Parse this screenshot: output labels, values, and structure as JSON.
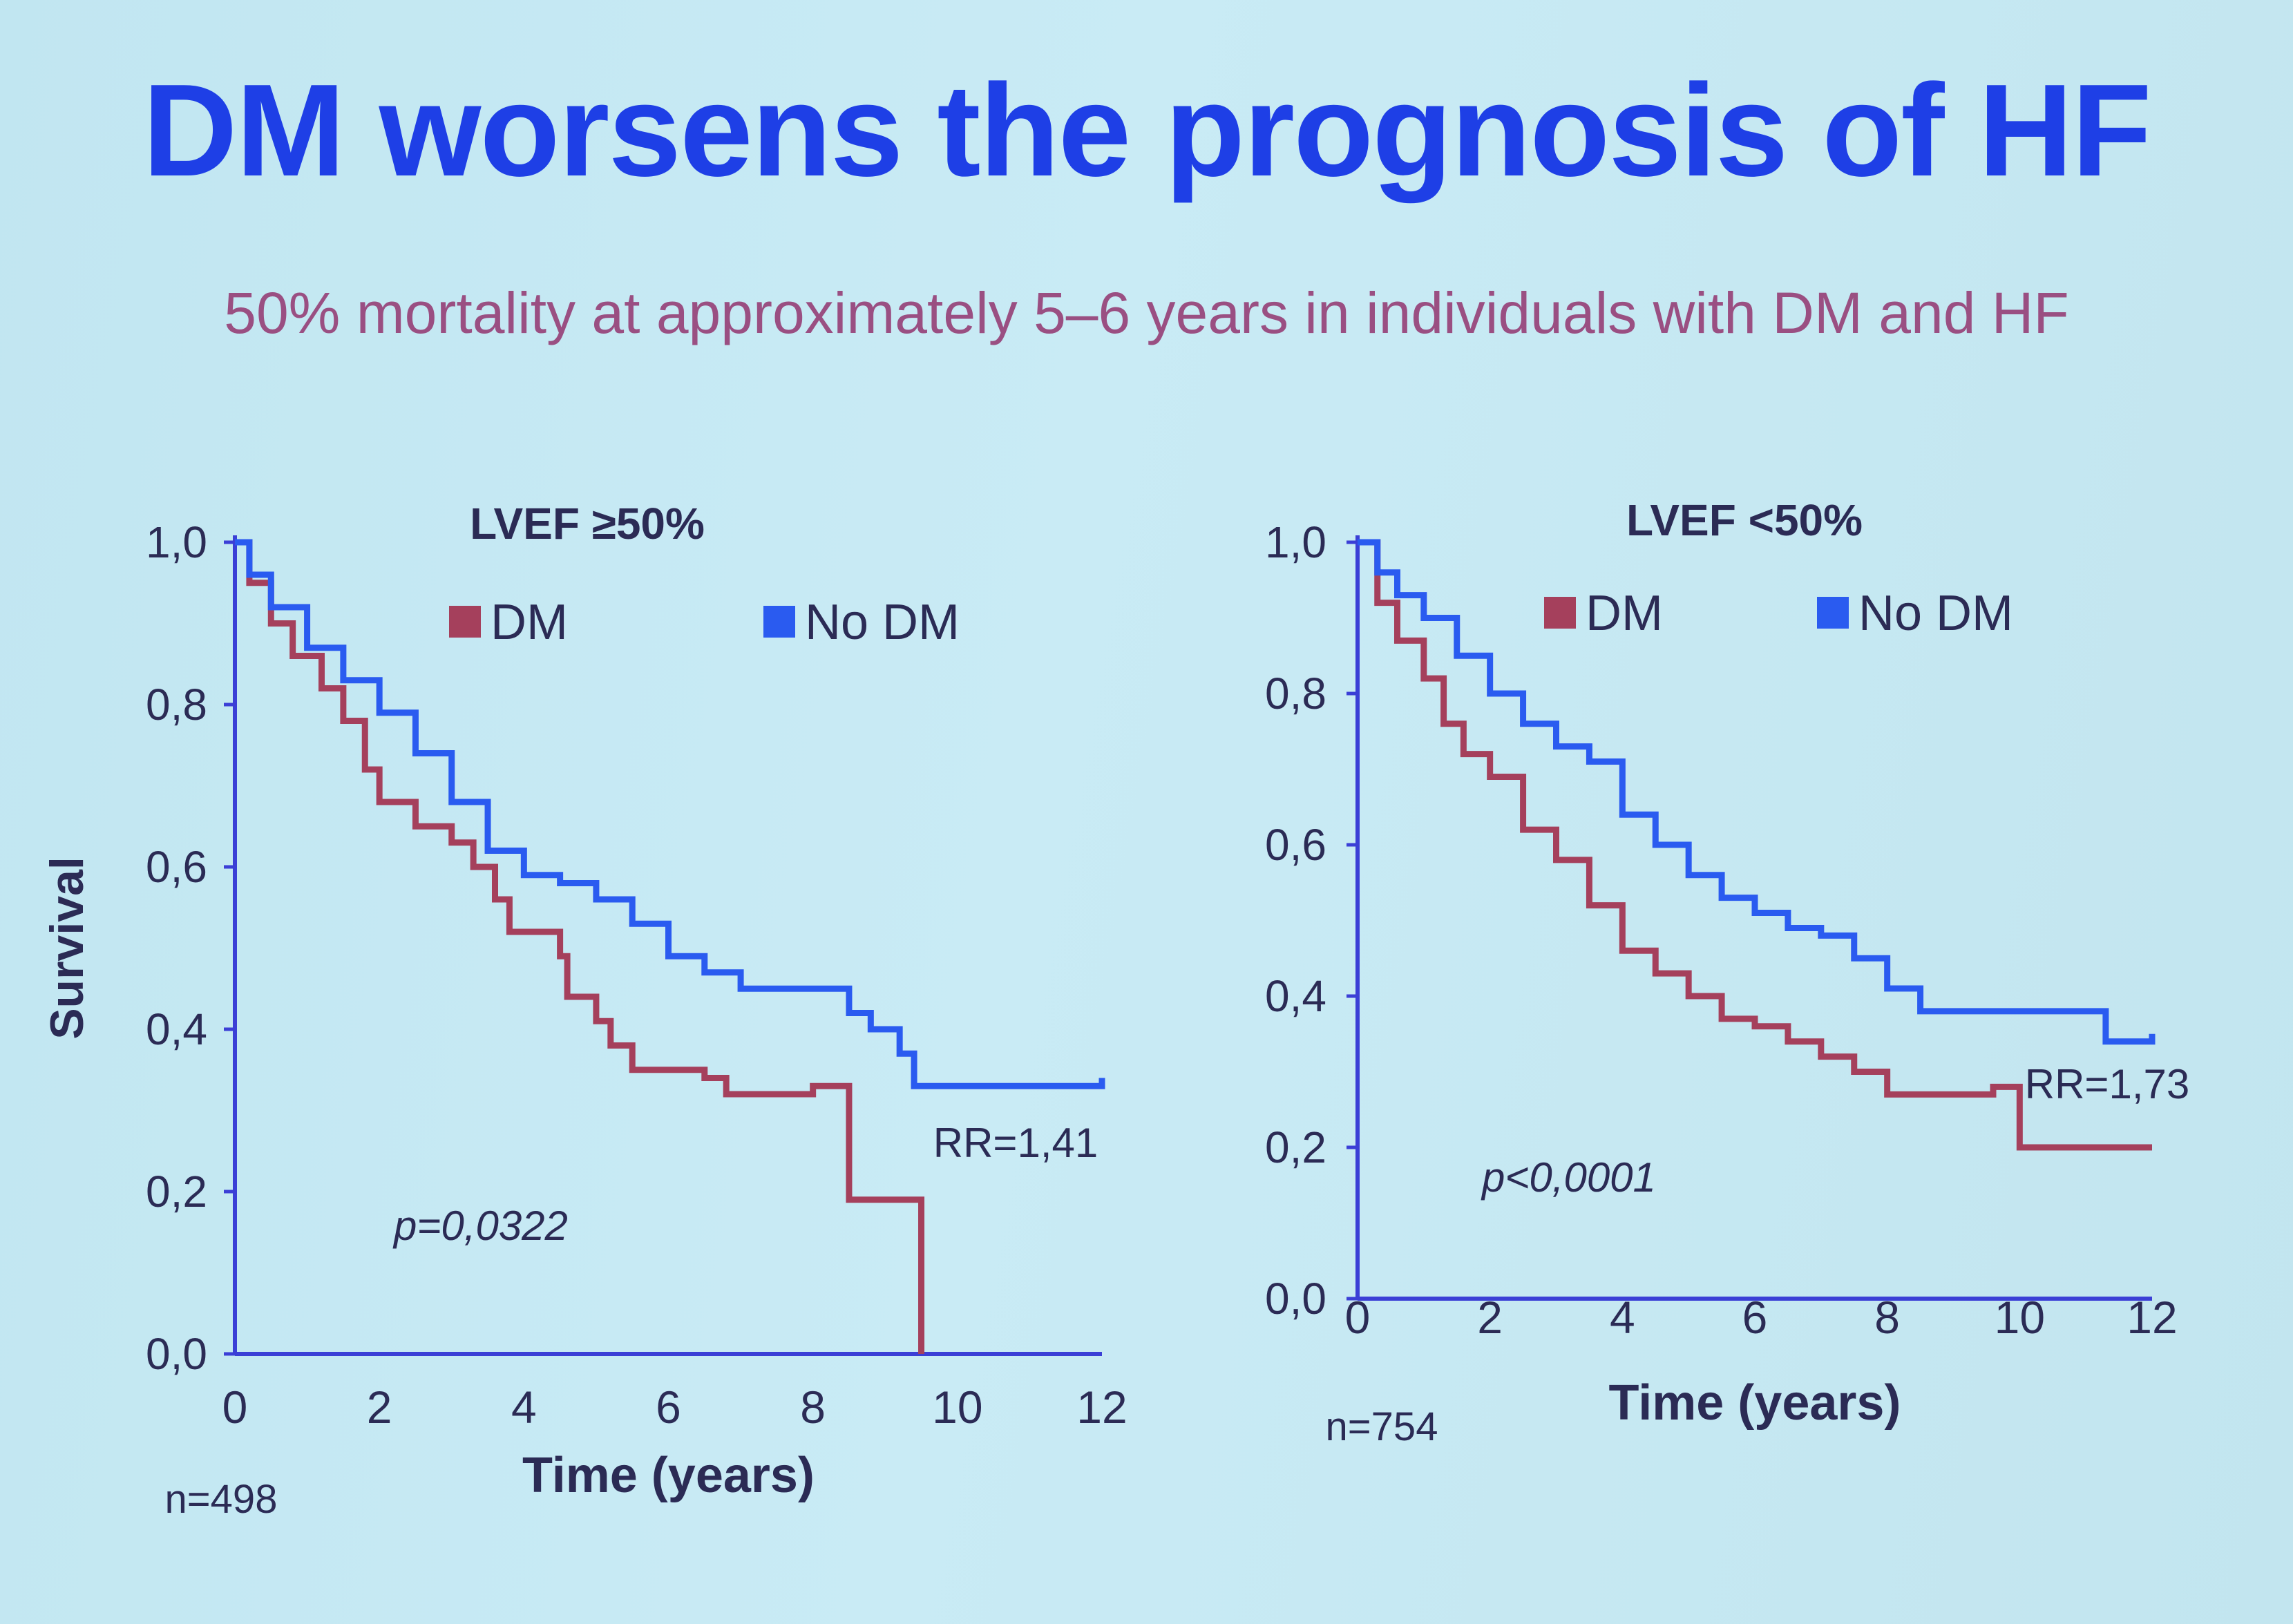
{
  "slide": {
    "title": "DM worsens the prognosis of HF",
    "subtitle": "50% mortality at approximately 5–6 years in individuals with DM and HF"
  },
  "colors": {
    "title": "#1e3fe6",
    "subtitle": "#9a4f82",
    "dm": "#a5405c",
    "no_dm": "#2a5bf0",
    "axis": "#3b3fd6",
    "text": "#2b2b55",
    "background": "#c6e9f3"
  },
  "chart_data": [
    {
      "type": "line",
      "subtype": "kaplan-meier",
      "title": "LVEF ≥50%",
      "xlabel": "Time (years)",
      "ylabel": "Survival",
      "xlim": [
        0,
        12
      ],
      "ylim": [
        0,
        1
      ],
      "x_ticks": [
        "0",
        "2",
        "4",
        "6",
        "8",
        "10",
        "12"
      ],
      "y_ticks": [
        "0,0",
        "0,2",
        "0,4",
        "0,6",
        "0,8",
        "1,0"
      ],
      "legend": [
        "DM",
        "No DM"
      ],
      "annotations": {
        "p_value": "p=0,0322",
        "rr": "RR=1,41",
        "n": "n=498"
      },
      "series": [
        {
          "name": "DM",
          "color": "#a5405c",
          "x": [
            0,
            0.2,
            0.5,
            0.8,
            1.2,
            1.5,
            1.8,
            2.0,
            2.5,
            3.0,
            3.3,
            3.6,
            3.8,
            4.5,
            4.6,
            5.0,
            5.2,
            5.5,
            6.5,
            6.8,
            7.5,
            8.0,
            8.5,
            9.3,
            9.5
          ],
          "y": [
            1.0,
            0.95,
            0.9,
            0.86,
            0.82,
            0.78,
            0.72,
            0.68,
            0.65,
            0.63,
            0.6,
            0.56,
            0.52,
            0.49,
            0.44,
            0.41,
            0.38,
            0.35,
            0.34,
            0.32,
            0.32,
            0.33,
            0.19,
            0.19,
            0.0
          ]
        },
        {
          "name": "No DM",
          "color": "#2a5bf0",
          "x": [
            0,
            0.2,
            0.5,
            1.0,
            1.5,
            2.0,
            2.5,
            3.0,
            3.5,
            4.0,
            4.5,
            5.0,
            5.5,
            6.0,
            6.5,
            7.0,
            7.5,
            8.0,
            8.5,
            8.8,
            9.2,
            9.4,
            10.0,
            11.0,
            12.0
          ],
          "y": [
            1.0,
            0.96,
            0.92,
            0.87,
            0.83,
            0.79,
            0.74,
            0.68,
            0.62,
            0.59,
            0.58,
            0.56,
            0.53,
            0.49,
            0.47,
            0.45,
            0.45,
            0.45,
            0.42,
            0.4,
            0.37,
            0.33,
            0.33,
            0.33,
            0.34
          ]
        }
      ]
    },
    {
      "type": "line",
      "subtype": "kaplan-meier",
      "title": "LVEF <50%",
      "xlabel": "Time (years)",
      "ylabel": "",
      "xlim": [
        0,
        12
      ],
      "ylim": [
        0,
        1
      ],
      "x_ticks": [
        "0",
        "2",
        "4",
        "6",
        "8",
        "10",
        "12"
      ],
      "y_ticks": [
        "0,0",
        "0,2",
        "0,4",
        "0,6",
        "0,8",
        "1,0"
      ],
      "legend": [
        "DM",
        "No DM"
      ],
      "annotations": {
        "p_value": "p<0,0001",
        "rr": "RR=1,73",
        "n": "n=754"
      },
      "series": [
        {
          "name": "DM",
          "color": "#a5405c",
          "x": [
            0,
            0.3,
            0.6,
            1.0,
            1.3,
            1.6,
            2.0,
            2.5,
            3.0,
            3.5,
            4.0,
            4.5,
            5.0,
            5.5,
            6.0,
            6.5,
            7.0,
            7.5,
            8.0,
            9.0,
            9.6,
            10.0,
            11.0,
            12.0
          ],
          "y": [
            1.0,
            0.92,
            0.87,
            0.82,
            0.76,
            0.72,
            0.69,
            0.62,
            0.58,
            0.52,
            0.46,
            0.43,
            0.4,
            0.37,
            0.36,
            0.34,
            0.32,
            0.3,
            0.27,
            0.27,
            0.28,
            0.2,
            0.2,
            0.2
          ]
        },
        {
          "name": "No DM",
          "color": "#2a5bf0",
          "x": [
            0,
            0.3,
            0.6,
            1.0,
            1.5,
            2.0,
            2.5,
            3.0,
            3.5,
            4.0,
            4.5,
            5.0,
            5.5,
            6.0,
            6.5,
            7.0,
            7.5,
            8.0,
            8.5,
            9.0,
            10.0,
            11.0,
            11.3,
            12.0
          ],
          "y": [
            1.0,
            0.96,
            0.93,
            0.9,
            0.85,
            0.8,
            0.76,
            0.73,
            0.71,
            0.64,
            0.6,
            0.56,
            0.53,
            0.51,
            0.49,
            0.48,
            0.45,
            0.41,
            0.38,
            0.38,
            0.38,
            0.38,
            0.34,
            0.35
          ]
        }
      ]
    }
  ]
}
